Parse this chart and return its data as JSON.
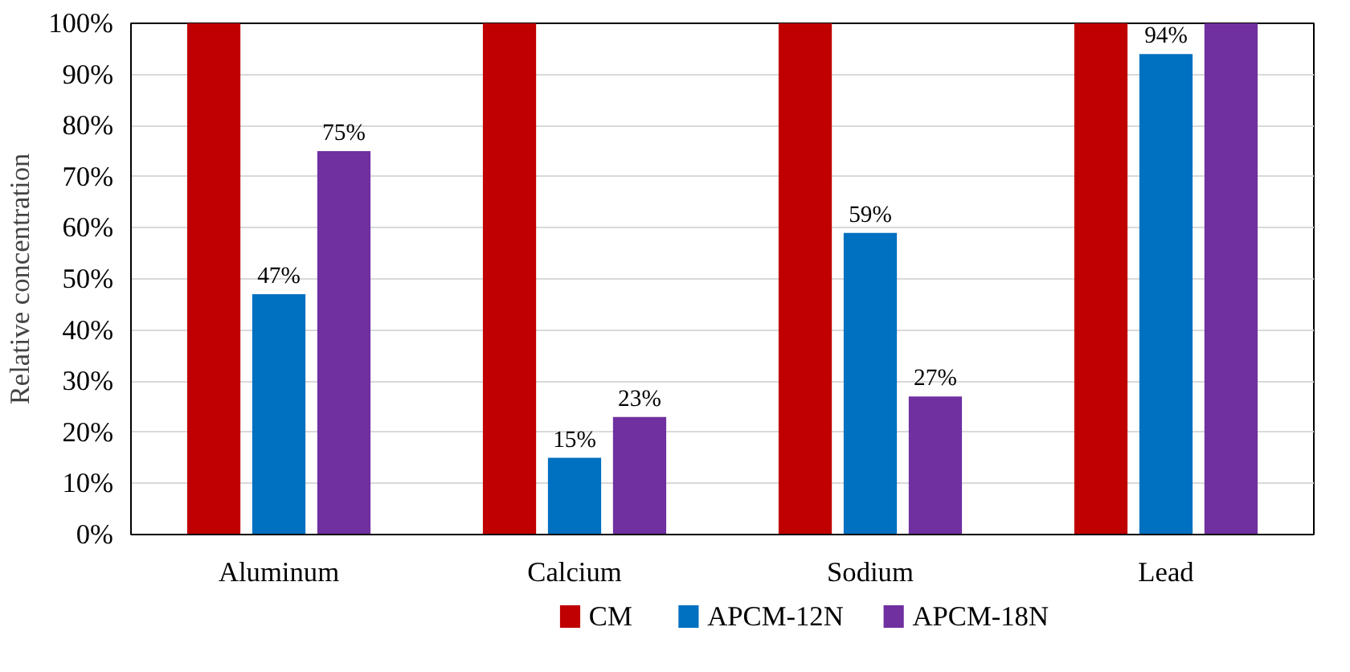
{
  "chart_data": {
    "type": "bar",
    "ylabel": "Relative concentration",
    "categories": [
      "Aluminum",
      "Calcium",
      "Sodium",
      "Lead"
    ],
    "series": [
      {
        "name": "CM",
        "color": "#c00000",
        "values": [
          100,
          100,
          100,
          100
        ]
      },
      {
        "name": "APCM-12N",
        "color": "#0070c0",
        "values": [
          47,
          15,
          59,
          94
        ],
        "value_labels": [
          "47%",
          "15%",
          "59%",
          "94%"
        ]
      },
      {
        "name": "APCM-18N",
        "color": "#7030a0",
        "values": [
          75,
          23,
          27,
          100
        ],
        "value_labels": [
          "75%",
          "23%",
          "27%",
          null
        ]
      }
    ],
    "ylim": [
      0,
      100
    ],
    "yticks": [
      {
        "value": 0,
        "label": "0%"
      },
      {
        "value": 10,
        "label": "10%"
      },
      {
        "value": 20,
        "label": "20%"
      },
      {
        "value": 30,
        "label": "30%"
      },
      {
        "value": 40,
        "label": "40%"
      },
      {
        "value": 50,
        "label": "50%"
      },
      {
        "value": 60,
        "label": "60%"
      },
      {
        "value": 70,
        "label": "70%"
      },
      {
        "value": 80,
        "label": "80%"
      },
      {
        "value": 90,
        "label": "90%"
      },
      {
        "value": 100,
        "label": "100%"
      }
    ],
    "grid": "y",
    "legend": "bottom"
  }
}
